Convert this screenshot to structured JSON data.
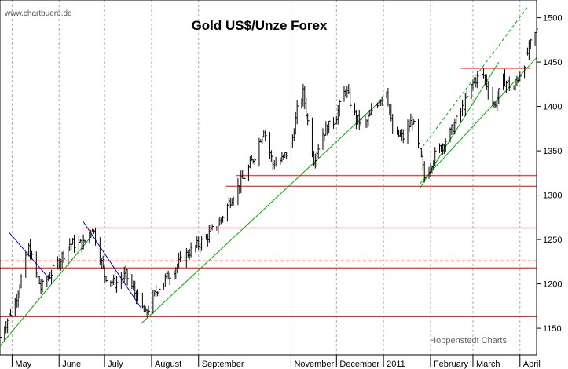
{
  "watermark": "www.chartbuero.de",
  "credit": "Hoppenstedt Charts",
  "chart_data": {
    "type": "ohlc",
    "title": "Gold US$/Unze Forex",
    "y_axis": {
      "position": "right",
      "ticks": [
        1150,
        1200,
        1250,
        1300,
        1350,
        1400,
        1450,
        1500
      ],
      "ylim": [
        1120,
        1520
      ]
    },
    "x_axis": {
      "range": [
        "2010-04-23",
        "2011-04-12"
      ],
      "month_labels": [
        {
          "label": "May",
          "date": "2010-05-01"
        },
        {
          "label": "June",
          "date": "2010-06-01"
        },
        {
          "label": "July",
          "date": "2010-07-01"
        },
        {
          "label": "August",
          "date": "2010-08-01"
        },
        {
          "label": "September",
          "date": "2010-09-01"
        },
        {
          "label": "November",
          "date": "2010-11-01"
        },
        {
          "label": "December",
          "date": "2010-12-01"
        },
        {
          "label": "2011",
          "date": "2011-01-01"
        },
        {
          "label": "February",
          "date": "2011-02-01"
        },
        {
          "label": "March",
          "date": "2011-03-01"
        },
        {
          "label": "April",
          "date": "2011-04-01"
        }
      ],
      "gridlines": "vertical dashed"
    },
    "series": [
      {
        "name": "",
        "color": "#000000",
        "price_path": [
          {
            "date": "2010-04-23",
            "price": 1140
          },
          {
            "date": "2010-05-03",
            "price": 1180
          },
          {
            "date": "2010-05-12",
            "price": 1240
          },
          {
            "date": "2010-05-20",
            "price": 1195
          },
          {
            "date": "2010-05-28",
            "price": 1215
          },
          {
            "date": "2010-06-08",
            "price": 1245
          },
          {
            "date": "2010-06-17",
            "price": 1245
          },
          {
            "date": "2010-06-23",
            "price": 1265
          },
          {
            "date": "2010-07-01",
            "price": 1210
          },
          {
            "date": "2010-07-08",
            "price": 1200
          },
          {
            "date": "2010-07-15",
            "price": 1210
          },
          {
            "date": "2010-07-21",
            "price": 1190
          },
          {
            "date": "2010-07-28",
            "price": 1165
          },
          {
            "date": "2010-08-05",
            "price": 1195
          },
          {
            "date": "2010-08-15",
            "price": 1215
          },
          {
            "date": "2010-08-25",
            "price": 1235
          },
          {
            "date": "2010-09-05",
            "price": 1250
          },
          {
            "date": "2010-09-15",
            "price": 1270
          },
          {
            "date": "2010-09-22",
            "price": 1295
          },
          {
            "date": "2010-09-29",
            "price": 1315
          },
          {
            "date": "2010-10-04",
            "price": 1330
          },
          {
            "date": "2010-10-08",
            "price": 1345
          },
          {
            "date": "2010-10-14",
            "price": 1375
          },
          {
            "date": "2010-10-20",
            "price": 1335
          },
          {
            "date": "2010-10-26",
            "price": 1340
          },
          {
            "date": "2010-11-01",
            "price": 1355
          },
          {
            "date": "2010-11-05",
            "price": 1395
          },
          {
            "date": "2010-11-09",
            "price": 1415
          },
          {
            "date": "2010-11-16",
            "price": 1340
          },
          {
            "date": "2010-11-22",
            "price": 1370
          },
          {
            "date": "2010-11-30",
            "price": 1385
          },
          {
            "date": "2010-12-07",
            "price": 1420
          },
          {
            "date": "2010-12-14",
            "price": 1385
          },
          {
            "date": "2010-12-20",
            "price": 1380
          },
          {
            "date": "2010-12-28",
            "price": 1405
          },
          {
            "date": "2011-01-03",
            "price": 1420
          },
          {
            "date": "2011-01-07",
            "price": 1370
          },
          {
            "date": "2011-01-14",
            "price": 1365
          },
          {
            "date": "2011-01-20",
            "price": 1385
          },
          {
            "date": "2011-01-26",
            "price": 1340
          },
          {
            "date": "2011-01-28",
            "price": 1320
          },
          {
            "date": "2011-02-04",
            "price": 1345
          },
          {
            "date": "2011-02-14",
            "price": 1370
          },
          {
            "date": "2011-02-24",
            "price": 1405
          },
          {
            "date": "2011-03-02",
            "price": 1430
          },
          {
            "date": "2011-03-08",
            "price": 1435
          },
          {
            "date": "2011-03-15",
            "price": 1400
          },
          {
            "date": "2011-03-21",
            "price": 1430
          },
          {
            "date": "2011-03-28",
            "price": 1420
          },
          {
            "date": "2011-04-04",
            "price": 1450
          },
          {
            "date": "2011-04-08",
            "price": 1470
          },
          {
            "date": "2011-04-12",
            "price": 1485
          }
        ]
      }
    ],
    "annotations": {
      "horizontal_lines": [
        {
          "y": 1163,
          "from": "2010-04-23",
          "to": "2011-04-12",
          "color": "#ff0000"
        },
        {
          "y": 1218,
          "from": "2010-04-23",
          "to": "2011-04-12",
          "color": "#ff0000"
        },
        {
          "y": 1226,
          "from": "2010-04-23",
          "to": "2011-04-12",
          "color": "#ff0000",
          "style": "dashed"
        },
        {
          "y": 1263,
          "from": "2010-06-17",
          "to": "2011-04-12",
          "color": "#ff0000"
        },
        {
          "y": 1310,
          "from": "2010-09-19",
          "to": "2011-04-12",
          "color": "#ff0000"
        },
        {
          "y": 1322,
          "from": "2010-09-26",
          "to": "2011-04-12",
          "color": "#ff0000"
        },
        {
          "y": 1443,
          "from": "2011-02-21",
          "to": "2011-04-08",
          "color": "#ff0000"
        }
      ],
      "trendlines": [
        {
          "from": [
            "2010-04-23",
            1130
          ],
          "to": [
            "2010-06-23",
            1255
          ],
          "color": "#00aa00"
        },
        {
          "from": [
            "2010-07-25",
            1155
          ],
          "to": [
            "2010-12-31",
            1408
          ],
          "color": "#00aa00"
        },
        {
          "from": [
            "2011-01-25",
            1308
          ],
          "to": [
            "2011-03-18",
            1450
          ],
          "color": "#00aa00"
        },
        {
          "from": [
            "2011-01-25",
            1313
          ],
          "to": [
            "2011-04-12",
            1455
          ],
          "color": "#00aa00"
        },
        {
          "from": [
            "2011-01-27",
            1355
          ],
          "to": [
            "2011-04-06",
            1512
          ],
          "color": "#00aa00",
          "style": "dashed"
        },
        {
          "from": [
            "2010-04-29",
            1258
          ],
          "to": [
            "2010-05-26",
            1205
          ],
          "color": "#0000cc"
        },
        {
          "from": [
            "2010-06-17",
            1270
          ],
          "to": [
            "2010-07-25",
            1173
          ],
          "color": "#0000cc"
        }
      ]
    }
  }
}
